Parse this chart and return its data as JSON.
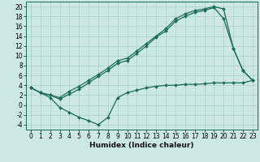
{
  "title": "",
  "xlabel": "Humidex (Indice chaleur)",
  "bg_color": "#cce8e4",
  "grid_color": "#aaceca",
  "line_color": "#1a6b5a",
  "xlim": [
    -0.5,
    23.5
  ],
  "ylim": [
    -5,
    21
  ],
  "xticks": [
    0,
    1,
    2,
    3,
    4,
    5,
    6,
    7,
    8,
    9,
    10,
    11,
    12,
    13,
    14,
    15,
    16,
    17,
    18,
    19,
    20,
    21,
    22,
    23
  ],
  "yticks": [
    -4,
    -2,
    0,
    2,
    4,
    6,
    8,
    10,
    12,
    14,
    16,
    18,
    20
  ],
  "line1_x": [
    0,
    1,
    2,
    3,
    4,
    5,
    6,
    7,
    8,
    9,
    10,
    11,
    12,
    13,
    14,
    15,
    16,
    17,
    18,
    19,
    20,
    21,
    22,
    23
  ],
  "line1_y": [
    3.5,
    2.5,
    2.0,
    1.5,
    2.8,
    3.8,
    5.0,
    6.2,
    7.5,
    9.0,
    9.5,
    11.0,
    12.5,
    14.0,
    15.5,
    17.5,
    18.5,
    19.2,
    19.5,
    20.0,
    19.5,
    11.5,
    7.0,
    5.0
  ],
  "line2_x": [
    0,
    1,
    2,
    3,
    4,
    5,
    6,
    7,
    8,
    9,
    10,
    11,
    12,
    13,
    14,
    15,
    16,
    17,
    18,
    19,
    20,
    21,
    22,
    23
  ],
  "line2_y": [
    3.5,
    2.5,
    2.0,
    1.2,
    2.2,
    3.2,
    4.5,
    5.8,
    7.0,
    8.5,
    9.0,
    10.5,
    12.0,
    13.8,
    15.0,
    17.0,
    18.0,
    18.8,
    19.2,
    19.8,
    17.5,
    11.5,
    7.0,
    5.0
  ],
  "line3_x": [
    0,
    1,
    2,
    3,
    4,
    5,
    6,
    7,
    8,
    9,
    10,
    11,
    12,
    13,
    14,
    15,
    16,
    17,
    18,
    19,
    20,
    21,
    22,
    23
  ],
  "line3_y": [
    3.5,
    2.5,
    1.5,
    -0.5,
    -1.5,
    -2.5,
    -3.2,
    -4.0,
    -2.5,
    1.5,
    2.5,
    3.0,
    3.5,
    3.8,
    4.0,
    4.0,
    4.2,
    4.2,
    4.3,
    4.5,
    4.5,
    4.5,
    4.5,
    5.0
  ],
  "tick_fontsize": 5.5,
  "xlabel_fontsize": 6.5,
  "marker": "D",
  "markersize": 2.0,
  "linewidth": 0.9
}
